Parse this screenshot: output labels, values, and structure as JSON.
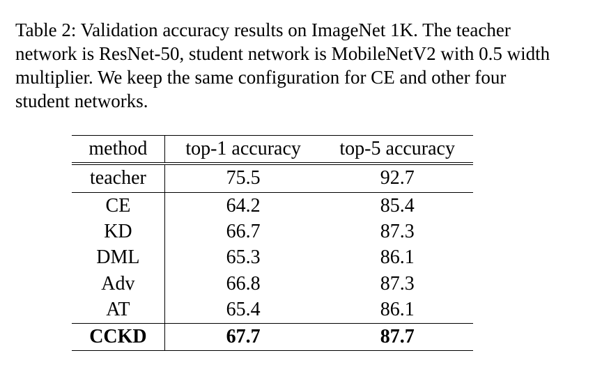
{
  "caption": "Table 2: Validation accuracy results on ImageNet 1K. The teacher network is ResNet-50, student network is MobileNetV2 with 0.5 width multiplier. We keep the same configuration for CE and other four student networks.",
  "table": {
    "headers": [
      "method",
      "top-1 accuracy",
      "top-5 accuracy"
    ],
    "teacher": {
      "method": "teacher",
      "top1": "75.5",
      "top5": "92.7"
    },
    "rows": [
      {
        "method": "CE",
        "top1": "64.2",
        "top5": "85.4"
      },
      {
        "method": "KD",
        "top1": "66.7",
        "top5": "87.3"
      },
      {
        "method": "DML",
        "top1": "65.3",
        "top5": "86.1"
      },
      {
        "method": "Adv",
        "top1": "66.8",
        "top5": "87.3"
      },
      {
        "method": "AT",
        "top1": "65.4",
        "top5": "86.1"
      }
    ],
    "best": {
      "method": "CCKD",
      "top1": "67.7",
      "top5": "87.7"
    }
  }
}
